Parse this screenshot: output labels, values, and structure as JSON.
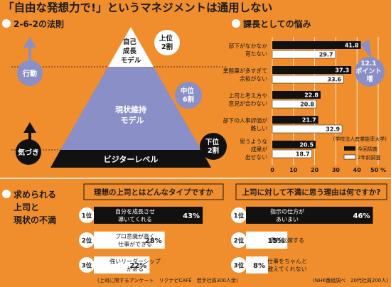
{
  "header": {
    "title": "「自由な発想力で!」というマネジメントは通用しない"
  },
  "rule_section": {
    "heading": "2-6-2の法則",
    "levels": [
      {
        "name": [
          "自己",
          "成長",
          "モデル"
        ],
        "tag": [
          "上位",
          "2割"
        ]
      },
      {
        "name": [
          "現状維持",
          "モデル"
        ],
        "tag": [
          "中位",
          "6割"
        ]
      },
      {
        "name": [
          "ビジターレベル"
        ],
        "tag": [
          "下位",
          "2割"
        ]
      }
    ],
    "action_label": "行動",
    "awareness_label": "気づき"
  },
  "worries_section": {
    "heading": "課長としての悩み",
    "source": "(学校法人産業能率大学)",
    "callout": [
      "12.1",
      "ポイント",
      "増"
    ],
    "legend": {
      "current": "今回調査",
      "previous": "2年前調査"
    },
    "colors": {
      "current": "#111111",
      "previous": "#ffffff"
    }
  },
  "chart_data": [
    {
      "type": "bar",
      "orientation": "horizontal",
      "title": "課長としての悩み",
      "categories": [
        [
          "部下がなかなか",
          "育たない"
        ],
        [
          "業務量が多すぎて",
          "余裕がない"
        ],
        [
          "上司と考え方や",
          "意見が合わない"
        ],
        [
          "部下の人事評価が",
          "難しい"
        ],
        [
          "思うような",
          "成果が",
          "出せない"
        ]
      ],
      "series": [
        {
          "name": "今回調査",
          "values": [
            41.8,
            37.3,
            22.8,
            21.7,
            20.5
          ]
        },
        {
          "name": "2年前調査",
          "values": [
            29.7,
            33.6,
            20.8,
            32.9,
            18.7
          ]
        }
      ],
      "xlim": [
        0,
        50
      ],
      "xticks": [
        "0",
        "10",
        "20",
        "30",
        "40",
        "50 %"
      ],
      "grid": true,
      "legend": "bottom-right"
    },
    {
      "type": "bar",
      "orientation": "horizontal",
      "title": "理想の上司とはどんなタイプですか",
      "ranks": [
        "1位",
        "2位",
        "3位"
      ],
      "categories": [
        [
          "自分を成長させ",
          "導いてくれる"
        ],
        [
          "プロ意識が高く",
          "仕事ができる"
        ],
        [
          "強いリーダーシップ",
          "がある"
        ]
      ],
      "values": [
        43,
        28,
        22
      ],
      "value_labels": [
        "43%",
        "28%",
        "22%"
      ],
      "xlim": [
        0,
        50
      ],
      "source": "(上司に関するアンケート　リクナビCAFÉ　若手社員300人余)"
    },
    {
      "type": "bar",
      "orientation": "horizontal",
      "title": "上司に対して不満に思う理由は何ですか?",
      "ranks": [
        "1位",
        "2位",
        "3位"
      ],
      "categories": [
        [
          "指示の仕方が",
          "あいまい"
        ],
        [
          "責任転嫁する"
        ],
        [
          "仕事をちゃんと",
          "教えてくれない"
        ]
      ],
      "values": [
        46,
        15,
        8
      ],
      "value_labels": [
        "46%",
        "15%",
        "8%"
      ],
      "xlim": [
        0,
        50
      ],
      "source": "(NHK番組調べ　20代社員200人)"
    }
  ],
  "bottom_section": {
    "heading": [
      "求められる",
      "上司と",
      "現状の不満"
    ]
  }
}
